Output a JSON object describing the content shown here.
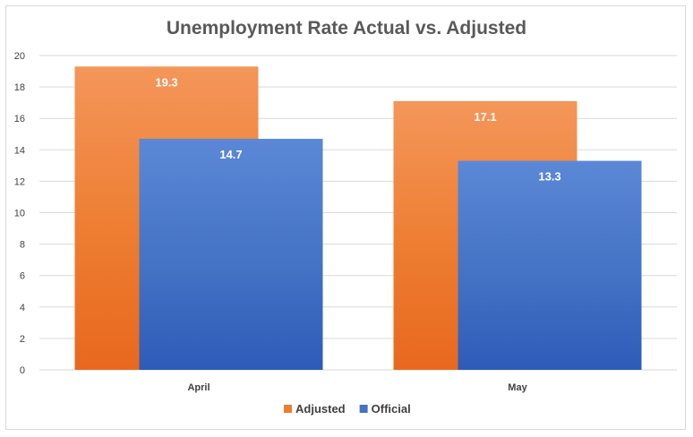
{
  "chart_data": {
    "type": "bar",
    "title": "Unemployment Rate Actual vs. Adjusted",
    "xlabel": "",
    "ylabel": "",
    "categories": [
      "April",
      "May"
    ],
    "series": [
      {
        "name": "Adjusted",
        "values": [
          19.3,
          17.1
        ],
        "color": "#ED7D31",
        "color_light": "#F4965A",
        "color_dark": "#E8681E"
      },
      {
        "name": "Official",
        "values": [
          14.7,
          13.3
        ],
        "color": "#4472C4",
        "color_light": "#5B88D6",
        "color_dark": "#2E5BB8"
      }
    ],
    "data_labels": [
      [
        "19.3",
        "17.1"
      ],
      [
        "14.7",
        "13.3"
      ]
    ],
    "ylim": [
      0,
      20
    ],
    "yticks": [
      0,
      2,
      4,
      6,
      8,
      10,
      12,
      14,
      16,
      18,
      20
    ],
    "grid": true,
    "legend_position": "bottom"
  }
}
